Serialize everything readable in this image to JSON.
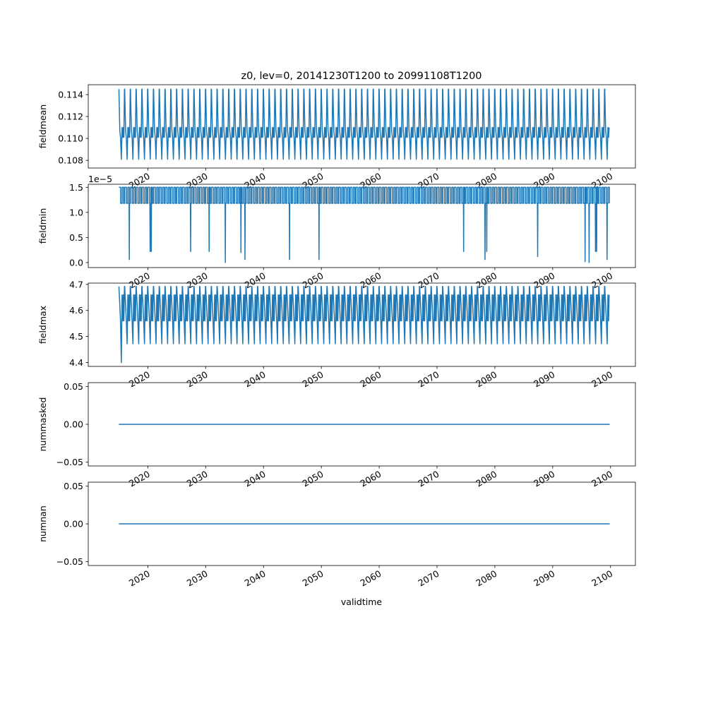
{
  "chart_data": {
    "type": "line",
    "title": "z0, lev=0, 20141230T1200 to 20991108T1200",
    "xlabel": "validtime",
    "x_start": "2014-12-30T12:00",
    "x_end": "2099-11-08T12:00",
    "xlim": [
      2009.7,
      2104.3
    ],
    "x_tick_labels": [
      "2020",
      "2030",
      "2040",
      "2050",
      "2060",
      "2070",
      "2080",
      "2090",
      "2100"
    ],
    "line_color": "#1f77b4",
    "grid": false,
    "panels": [
      {
        "ylabel": "fieldmean",
        "ylim": [
          0.1073,
          0.1149
        ],
        "y_ticks": [
          0.108,
          0.11,
          0.112,
          0.114
        ],
        "y_tick_labels": [
          "0.108",
          "0.110",
          "0.112",
          "0.114"
        ],
        "offset_text": "",
        "series_kind": "seasonal",
        "min_level": 0.1081,
        "max_level": 0.1145,
        "mid_levels": [
          0.1101,
          0.1107,
          0.111
        ]
      },
      {
        "ylabel": "fieldmin",
        "ylim": [
          -1e-06,
          1.56e-05
        ],
        "y_ticks": [
          0,
          5e-06,
          1e-05,
          1.5e-05
        ],
        "y_tick_labels": [
          "0.0",
          "0.5",
          "1.0",
          "1.5"
        ],
        "offset_text": "1e−5",
        "series_kind": "step",
        "high_level": 1.5e-05,
        "low_level": 1.18e-05,
        "dips": [
          {
            "x": 2016.8,
            "y": 6e-07
          },
          {
            "x": 2020.4,
            "y": 2.2e-06
          },
          {
            "x": 2020.6,
            "y": 2.2e-06
          },
          {
            "x": 2027.4,
            "y": 2.2e-06
          },
          {
            "x": 2030.6,
            "y": 2.2e-06
          },
          {
            "x": 2033.4,
            "y": 0.0
          },
          {
            "x": 2036.1,
            "y": 2e-06
          },
          {
            "x": 2036.8,
            "y": 6e-07
          },
          {
            "x": 2044.5,
            "y": 6e-07
          },
          {
            "x": 2049.6,
            "y": 6e-07
          },
          {
            "x": 2074.6,
            "y": 2.2e-06
          },
          {
            "x": 2078.3,
            "y": 6e-07
          },
          {
            "x": 2078.6,
            "y": 2.2e-06
          },
          {
            "x": 2087.4,
            "y": 1.2e-06
          },
          {
            "x": 2095.6,
            "y": 2e-07
          },
          {
            "x": 2096.3,
            "y": 0.0
          },
          {
            "x": 2097.4,
            "y": 2.2e-06
          },
          {
            "x": 2097.6,
            "y": 2.2e-06
          },
          {
            "x": 2099.4,
            "y": 6e-07
          }
        ]
      },
      {
        "ylabel": "fieldmax",
        "ylim": [
          4.385,
          4.705
        ],
        "y_ticks": [
          4.4,
          4.5,
          4.6,
          4.7
        ],
        "y_tick_labels": [
          "4.4",
          "4.5",
          "4.6",
          "4.7"
        ],
        "offset_text": "",
        "series_kind": "seasonal",
        "min_level": 4.472,
        "max_level": 4.692,
        "mid_levels": [
          4.56,
          4.62,
          4.66
        ],
        "first_min": 4.4
      },
      {
        "ylabel": "nummasked",
        "ylim": [
          -0.055,
          0.055
        ],
        "y_ticks": [
          -0.05,
          0.0,
          0.05
        ],
        "y_tick_labels": [
          "−0.05",
          "0.00",
          "0.05"
        ],
        "offset_text": "",
        "series_kind": "constant",
        "value": 0.0
      },
      {
        "ylabel": "numnan",
        "ylim": [
          -0.055,
          0.055
        ],
        "y_ticks": [
          -0.05,
          0.0,
          0.05
        ],
        "y_tick_labels": [
          "−0.05",
          "0.00",
          "0.05"
        ],
        "offset_text": "",
        "series_kind": "constant",
        "value": 0.0
      }
    ]
  }
}
